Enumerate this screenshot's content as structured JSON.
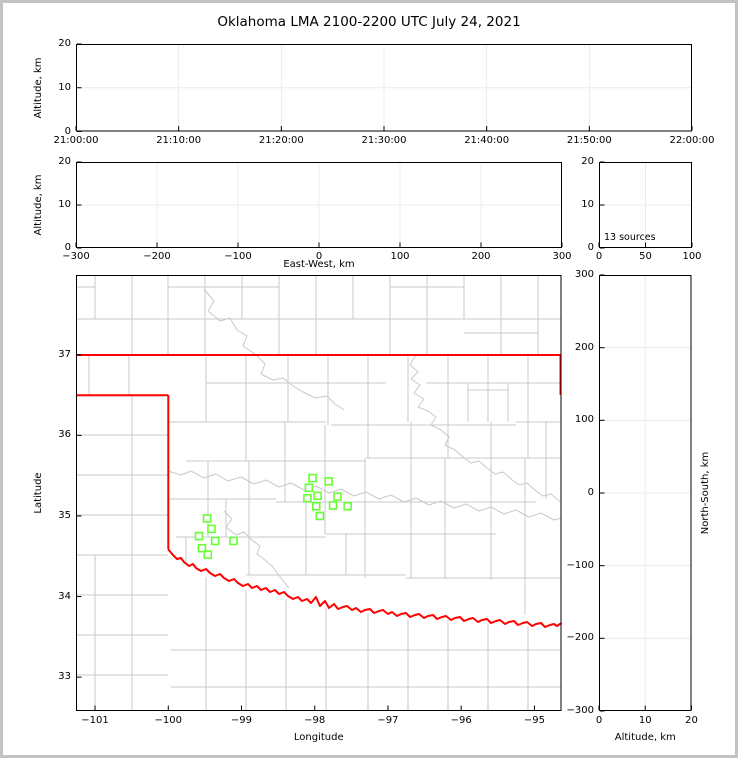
{
  "figure": {
    "title": "Oklahoma LMA 2100-2200 UTC July 24, 2021"
  },
  "colors": {
    "frame": "#c3c3c3",
    "axis": "#000000",
    "grid_lines": "#ececec",
    "county_lines": "#c9c9c9",
    "river_lines": "#c9c9c9",
    "state_border": "#ff0000",
    "station_marker": "#66ff33"
  },
  "chart_data": [
    {
      "id": "time-height",
      "type": "scatter",
      "description": "VHF source altitude vs time (no sources plotted)",
      "xlim": [
        0,
        3600
      ],
      "ylim": [
        0,
        20
      ],
      "x_ticks": [
        {
          "v": 0,
          "label": "21:00:00"
        },
        {
          "v": 600,
          "label": "21:10:00"
        },
        {
          "v": 1200,
          "label": "21:20:00"
        },
        {
          "v": 1800,
          "label": "21:30:00"
        },
        {
          "v": 2400,
          "label": "21:40:00"
        },
        {
          "v": 3000,
          "label": "21:50:00"
        },
        {
          "v": 3600,
          "label": "22:00:00"
        }
      ],
      "y_ticks": [
        {
          "v": 0,
          "label": "0"
        },
        {
          "v": 10,
          "label": "10"
        },
        {
          "v": 20,
          "label": "20"
        }
      ],
      "xlabel": "",
      "ylabel": "Altitude, km",
      "grid": true,
      "points": []
    },
    {
      "id": "ew-height",
      "type": "scatter",
      "description": "VHF source altitude vs east-west distance (no sources plotted)",
      "xlim": [
        -300,
        300
      ],
      "ylim": [
        0,
        20
      ],
      "x_ticks": [
        {
          "v": -300,
          "label": "−300"
        },
        {
          "v": -200,
          "label": "−200"
        },
        {
          "v": -100,
          "label": "−100"
        },
        {
          "v": 0,
          "label": "0"
        },
        {
          "v": 100,
          "label": "100"
        },
        {
          "v": 200,
          "label": "200"
        },
        {
          "v": 300,
          "label": "300"
        }
      ],
      "y_ticks": [
        {
          "v": 0,
          "label": "0"
        },
        {
          "v": 10,
          "label": "10"
        },
        {
          "v": 20,
          "label": "20"
        }
      ],
      "xlabel": "East-West, km",
      "ylabel": "Altitude, km",
      "grid": true,
      "points": []
    },
    {
      "id": "alt-histogram",
      "type": "line",
      "description": "Source count vs altitude histogram panel",
      "xlim": [
        0,
        100
      ],
      "ylim": [
        0,
        20
      ],
      "x_ticks": [
        {
          "v": 0,
          "label": "0"
        },
        {
          "v": 50,
          "label": "50"
        },
        {
          "v": 100,
          "label": "100"
        }
      ],
      "y_ticks": [
        {
          "v": 0,
          "label": "0"
        },
        {
          "v": 10,
          "label": "10"
        },
        {
          "v": 20,
          "label": "20"
        }
      ],
      "xlabel": "",
      "ylabel": "",
      "annotation": "13 sources",
      "grid": true,
      "points": []
    },
    {
      "id": "plan-view",
      "type": "scatter",
      "description": "Plan view map of Oklahoma with county lines, state border and LMA station squares",
      "xlim": [
        -101.26,
        -94.63
      ],
      "ylim": [
        32.58,
        37.99
      ],
      "x_ticks": [
        {
          "v": -101,
          "label": "−101"
        },
        {
          "v": -100,
          "label": "−100"
        },
        {
          "v": -99,
          "label": "−99"
        },
        {
          "v": -98,
          "label": "−98"
        },
        {
          "v": -97,
          "label": "−97"
        },
        {
          "v": -96,
          "label": "−96"
        },
        {
          "v": -95,
          "label": "−95"
        }
      ],
      "y_ticks": [
        {
          "v": 33,
          "label": "33"
        },
        {
          "v": 34,
          "label": "34"
        },
        {
          "v": 35,
          "label": "35"
        },
        {
          "v": 36,
          "label": "36"
        },
        {
          "v": 37,
          "label": "37"
        }
      ],
      "xlabel": "Longitude",
      "ylabel": "Latitude",
      "grid": false,
      "stations": [
        {
          "lon": -98.03,
          "lat": 35.47
        },
        {
          "lon": -97.81,
          "lat": 35.43
        },
        {
          "lon": -98.08,
          "lat": 35.35
        },
        {
          "lon": -97.96,
          "lat": 35.25
        },
        {
          "lon": -98.1,
          "lat": 35.22
        },
        {
          "lon": -97.98,
          "lat": 35.12
        },
        {
          "lon": -97.75,
          "lat": 35.13
        },
        {
          "lon": -97.69,
          "lat": 35.24
        },
        {
          "lon": -97.55,
          "lat": 35.12
        },
        {
          "lon": -97.93,
          "lat": 35.0
        },
        {
          "lon": -99.47,
          "lat": 34.97
        },
        {
          "lon": -99.41,
          "lat": 34.84
        },
        {
          "lon": -99.58,
          "lat": 34.75
        },
        {
          "lon": -99.36,
          "lat": 34.69
        },
        {
          "lon": -99.11,
          "lat": 34.69
        },
        {
          "lon": -99.54,
          "lat": 34.6
        },
        {
          "lon": -99.46,
          "lat": 34.52
        }
      ]
    },
    {
      "id": "ns-height",
      "type": "scatter",
      "description": "VHF source north-south distance vs altitude (no sources plotted)",
      "xlim": [
        0,
        20
      ],
      "ylim": [
        -300,
        300
      ],
      "x_ticks": [
        {
          "v": 0,
          "label": "0"
        },
        {
          "v": 10,
          "label": "10"
        },
        {
          "v": 20,
          "label": "20"
        }
      ],
      "y_ticks": [
        {
          "v": -300,
          "label": "−300"
        },
        {
          "v": -200,
          "label": "−200"
        },
        {
          "v": -100,
          "label": "−100"
        },
        {
          "v": 0,
          "label": "0"
        },
        {
          "v": 100,
          "label": "100"
        },
        {
          "v": 200,
          "label": "200"
        },
        {
          "v": 300,
          "label": "300"
        }
      ],
      "xlabel": "Altitude, km",
      "ylabel_right": "North-South, km",
      "grid": true,
      "points": []
    }
  ]
}
